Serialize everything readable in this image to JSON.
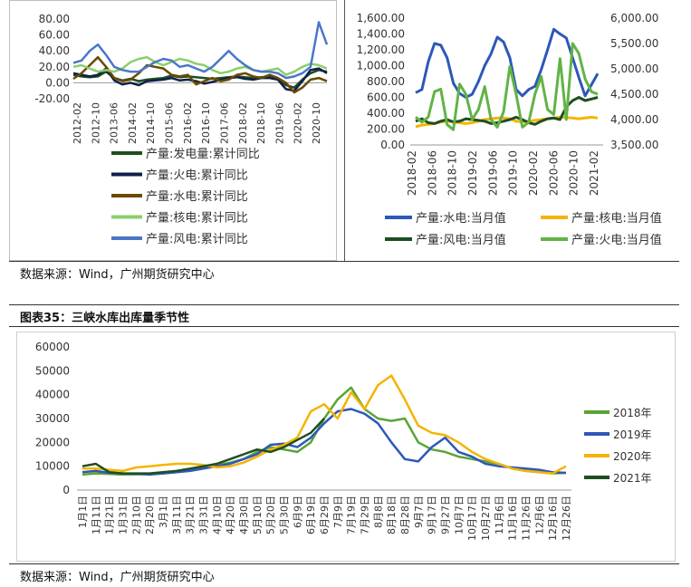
{
  "source_text_1": "数据来源：Wind，广州期货研究中心",
  "source_text_2": "数据来源：Wind，广州期货研究中心",
  "figure_title": "图表35：三峡水库出库量季节性",
  "chart_data": [
    {
      "type": "line",
      "ylim": [
        -20,
        80
      ],
      "yticks": [
        "80.00",
        "60.00",
        "40.00",
        "20.00",
        "0.00",
        "-20.00"
      ],
      "x_labels": [
        "2012-02",
        "2012-10",
        "2013-06",
        "2014-02",
        "2014-10",
        "2015-06",
        "2016-02",
        "2016-10",
        "2017-06",
        "2018-02",
        "2018-10",
        "2019-06",
        "2020-02",
        "2020-10"
      ],
      "legend_position": "bottom",
      "series": [
        {
          "name": "产量:发电量:累计同比",
          "color": "#1f4e20",
          "values": [
            10,
            8,
            7,
            8,
            14,
            6,
            3,
            5,
            2,
            4,
            5,
            6,
            9,
            7,
            8,
            7,
            6,
            5,
            6,
            7,
            8,
            7,
            6,
            7,
            8,
            5,
            -3,
            -6,
            4,
            12,
            16,
            14
          ]
        },
        {
          "name": "产量:火电:累计同比",
          "color": "#10204a",
          "values": [
            12,
            10,
            8,
            10,
            18,
            3,
            -2,
            0,
            -3,
            2,
            3,
            4,
            6,
            3,
            4,
            2,
            -1,
            1,
            4,
            6,
            7,
            5,
            4,
            6,
            6,
            4,
            -8,
            -10,
            2,
            16,
            18,
            12
          ]
        },
        {
          "name": "产量:水电:累计同比",
          "color": "#6b4a00",
          "values": [
            5,
            12,
            22,
            32,
            20,
            6,
            2,
            4,
            12,
            22,
            20,
            18,
            10,
            8,
            10,
            -2,
            2,
            6,
            2,
            4,
            10,
            12,
            8,
            6,
            10,
            6,
            0,
            -12,
            -6,
            4,
            6,
            2
          ]
        },
        {
          "name": "产量:核电:累计同比",
          "color": "#8ccf6a",
          "values": [
            20,
            22,
            18,
            14,
            16,
            14,
            18,
            26,
            30,
            32,
            26,
            22,
            26,
            30,
            28,
            24,
            22,
            16,
            12,
            14,
            18,
            20,
            16,
            14,
            16,
            18,
            10,
            14,
            20,
            24,
            22,
            18
          ]
        },
        {
          "name": "产量:风电:累计同比",
          "color": "#4a76c9",
          "values": [
            25,
            28,
            40,
            48,
            35,
            20,
            16,
            14,
            14,
            20,
            26,
            30,
            28,
            20,
            22,
            18,
            14,
            20,
            30,
            40,
            30,
            22,
            16,
            14,
            14,
            12,
            6,
            8,
            12,
            20,
            76,
            48
          ]
        }
      ]
    },
    {
      "type": "line",
      "ylim_left": [
        0,
        1600
      ],
      "ylim_right": [
        3500,
        6000
      ],
      "yticks_left": [
        "1,600.00",
        "1,400.00",
        "1,200.00",
        "1,000.00",
        "800.00",
        "600.00",
        "400.00",
        "200.00",
        "0.00"
      ],
      "yticks_right": [
        "6,000.00",
        "5,500.00",
        "5,000.00",
        "4,500.00",
        "4,000.00",
        "3,500.00"
      ],
      "x_labels": [
        "2018-02",
        "2018-06",
        "2018-10",
        "2019-02",
        "2019-06",
        "2019-10",
        "2020-02",
        "2020-06",
        "2020-10",
        "2021-02"
      ],
      "legend_position": "bottom",
      "series": [
        {
          "name": "产量:水电:当月值",
          "axis": "left",
          "color": "#2e58b8",
          "values": [
            660,
            700,
            1050,
            1280,
            1260,
            1100,
            780,
            650,
            600,
            640,
            800,
            1000,
            1150,
            1360,
            1300,
            1100,
            700,
            620,
            700,
            740,
            950,
            1200,
            1460,
            1400,
            1350,
            1100,
            850,
            620,
            760,
            900
          ]
        },
        {
          "name": "产量:核电:当月值",
          "axis": "left",
          "color": "#f5b400",
          "values": [
            230,
            250,
            260,
            270,
            290,
            300,
            290,
            280,
            270,
            280,
            300,
            320,
            330,
            340,
            340,
            330,
            300,
            290,
            300,
            310,
            320,
            330,
            340,
            350,
            345,
            340,
            330,
            340,
            350,
            340
          ]
        },
        {
          "name": "产量:风电:当月值",
          "axis": "left",
          "color": "#1f4e20",
          "values": [
            300,
            330,
            280,
            270,
            300,
            320,
            290,
            300,
            330,
            320,
            310,
            300,
            270,
            280,
            300,
            320,
            350,
            320,
            280,
            260,
            300,
            330,
            340,
            320,
            480,
            560,
            600,
            560,
            580,
            600
          ]
        },
        {
          "name": "产量:火电:当月值",
          "axis": "right",
          "color": "#62b346",
          "values": [
            4050,
            3950,
            4050,
            4550,
            4600,
            3900,
            3800,
            4700,
            4500,
            4000,
            4200,
            4650,
            4000,
            3850,
            4150,
            5050,
            4500,
            3850,
            3950,
            4500,
            4850,
            4200,
            4100,
            5200,
            4000,
            5500,
            5300,
            4800,
            4550,
            4500
          ]
        }
      ]
    },
    {
      "type": "line",
      "ylim": [
        0,
        60000
      ],
      "yticks": [
        "60000",
        "50000",
        "40000",
        "30000",
        "20000",
        "10000",
        "0"
      ],
      "x_labels": [
        "1月1日",
        "1月11日",
        "1月21日",
        "1月31日",
        "2月10日",
        "2月20日",
        "3月1日",
        "3月11日",
        "3月21日",
        "3月31日",
        "4月10日",
        "4月20日",
        "4月30日",
        "5月10日",
        "5月20日",
        "5月30日",
        "6月9日",
        "6月19日",
        "6月29日",
        "7月9日",
        "7月19日",
        "7月29日",
        "8月8日",
        "8月18日",
        "8月28日",
        "9月7日",
        "9月17日",
        "9月27日",
        "10月7日",
        "10月17日",
        "10月27日",
        "11月6日",
        "11月16日",
        "11月26日",
        "12月6日",
        "12月16日",
        "12月26日"
      ],
      "legend_position": "right",
      "series": [
        {
          "name": "2018年",
          "color": "#5aa436",
          "values": [
            6500,
            7000,
            6800,
            6500,
            6600,
            6800,
            7000,
            7500,
            8500,
            9500,
            10500,
            11500,
            13000,
            16000,
            18000,
            17000,
            16000,
            20000,
            30000,
            38000,
            43000,
            34000,
            30000,
            29000,
            30000,
            20000,
            17000,
            16000,
            14000,
            13000,
            12000,
            11000,
            9000,
            8000,
            7500,
            7000,
            7200
          ]
        },
        {
          "name": "2019年",
          "color": "#2e58b8",
          "values": [
            7500,
            8000,
            7200,
            7000,
            6800,
            6500,
            7000,
            7500,
            8000,
            9000,
            10000,
            11000,
            13000,
            15000,
            19000,
            19500,
            18000,
            22000,
            28000,
            33000,
            34000,
            32000,
            28000,
            20000,
            13000,
            12000,
            18000,
            22000,
            16000,
            14000,
            11000,
            10000,
            9500,
            9000,
            8500,
            7500,
            7200
          ]
        },
        {
          "name": "2020年",
          "color": "#f5b400",
          "values": [
            9000,
            9000,
            8500,
            8000,
            9500,
            10000,
            10500,
            11000,
            11000,
            10500,
            9500,
            10000,
            11500,
            14000,
            17000,
            19000,
            22000,
            33000,
            36000,
            30000,
            41000,
            34000,
            44000,
            48000,
            38000,
            27000,
            24000,
            23000,
            20000,
            16000,
            13000,
            11000,
            9000,
            8000,
            7500,
            7000,
            10000
          ]
        },
        {
          "name": "2021年",
          "color": "#1f4e20",
          "values": [
            10000,
            11000,
            7500,
            7000,
            7000,
            7000,
            7500,
            8000,
            9000,
            10000,
            11000,
            13000,
            15000,
            17000,
            16000,
            18000,
            21000,
            24000,
            30000
          ]
        }
      ]
    }
  ]
}
